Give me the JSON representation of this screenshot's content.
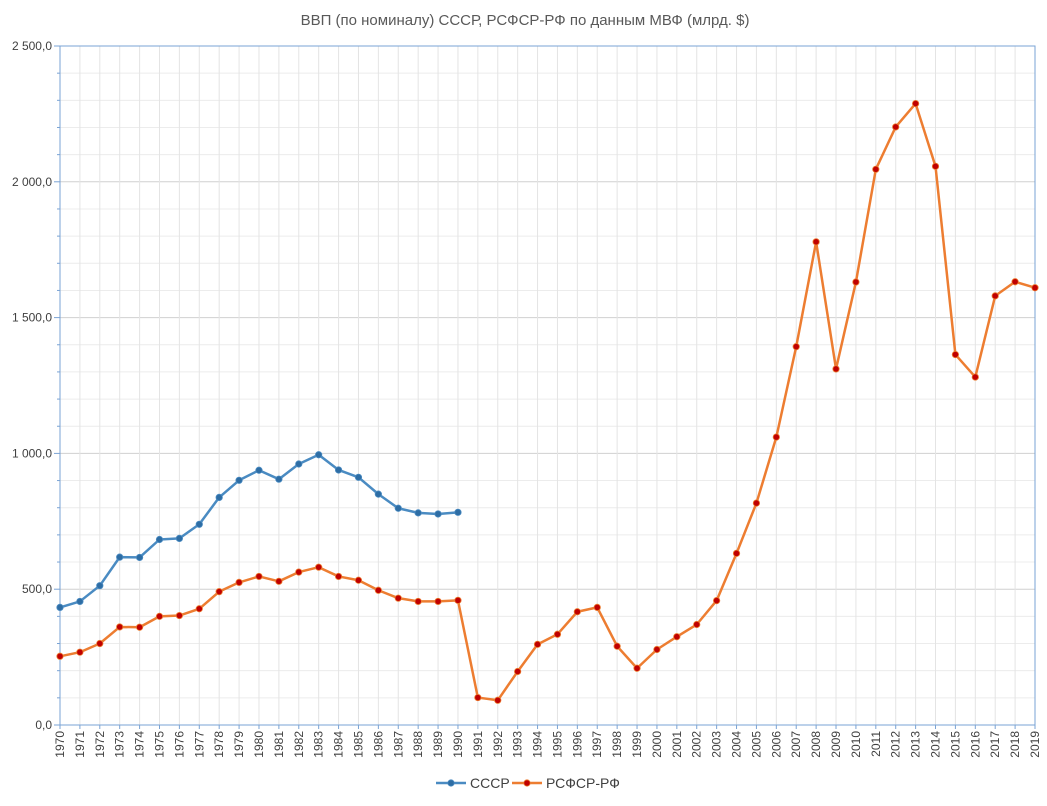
{
  "chart_data": {
    "type": "line",
    "title": "ВВП (по номиналу)  СССР, РСФСР-РФ по данным МВФ (млрд. $)",
    "xlabel": "",
    "ylabel": "",
    "ylim": [
      0,
      2500
    ],
    "y_ticks": [
      "0,0",
      "500,0",
      "1 000,0",
      "1 500,0",
      "2 000,0",
      "2 500,0"
    ],
    "grid": true,
    "legend_position": "bottom",
    "x": [
      "1970",
      "1971",
      "1972",
      "1973",
      "1974",
      "1975",
      "1976",
      "1977",
      "1978",
      "1979",
      "1980",
      "1981",
      "1982",
      "1983",
      "1984",
      "1985",
      "1986",
      "1987",
      "1988",
      "1989",
      "1990",
      "1991",
      "1992",
      "1993",
      "1994",
      "1995",
      "1996",
      "1997",
      "1998",
      "1999",
      "2000",
      "2001",
      "2002",
      "2003",
      "2004",
      "2005",
      "2006",
      "2007",
      "2008",
      "2009",
      "2010",
      "2011",
      "2012",
      "2013",
      "2014",
      "2015",
      "2016",
      "2017",
      "2018",
      "2019"
    ],
    "series": [
      {
        "name": "СССР",
        "color": "#4a8bc2",
        "marker_color": "#2e6da4",
        "values": [
          433,
          455,
          513,
          618,
          617,
          683,
          687,
          739,
          838,
          901,
          938,
          905,
          961,
          995,
          939,
          912,
          850,
          798,
          781,
          777,
          783,
          null,
          null,
          null,
          null,
          null,
          null,
          null,
          null,
          null,
          null,
          null,
          null,
          null,
          null,
          null,
          null,
          null,
          null,
          null,
          null,
          null,
          null,
          null,
          null,
          null,
          null,
          null,
          null,
          null
        ]
      },
      {
        "name": "РСФСР-РФ",
        "color": "#ed7d31",
        "marker_color": "#c00000",
        "values": [
          253,
          268,
          300,
          361,
          360,
          400,
          403,
          428,
          491,
          525,
          547,
          529,
          563,
          581,
          547,
          533,
          496,
          467,
          455,
          455,
          459,
          101,
          91,
          197,
          297,
          334,
          417,
          433,
          290,
          209,
          278,
          325,
          370,
          458,
          632,
          817,
          1060,
          1393,
          1779,
          1311,
          1631,
          2046,
          2202,
          2288,
          2057,
          1364,
          1281,
          1580,
          1632,
          1610
        ]
      }
    ]
  }
}
